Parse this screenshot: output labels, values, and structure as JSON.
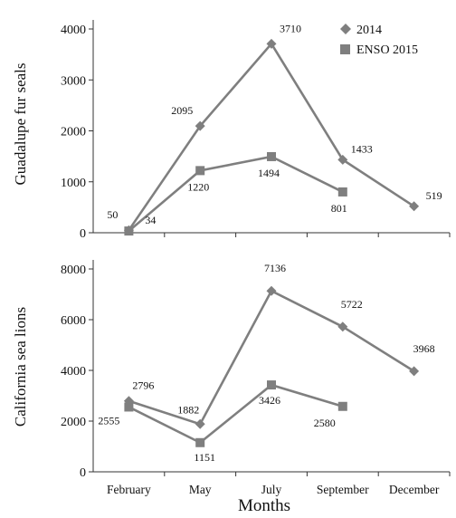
{
  "chart_data": {
    "type": "line",
    "categories": [
      "February",
      "May",
      "July",
      "September",
      "December"
    ],
    "xlabel": "Months",
    "legend": {
      "placement": "top-right",
      "entries": [
        {
          "label": "2014",
          "marker": "diamond"
        },
        {
          "label": "ENSO 2015",
          "marker": "square"
        }
      ]
    },
    "colors": {
      "line": "#7f7f7f",
      "marker": "#7f7f7f",
      "axis": "#333333"
    },
    "grid": false,
    "panels": [
      {
        "id": "top",
        "ylabel": "Guadalupe fur seals",
        "ylim": [
          0,
          4000
        ],
        "yticks": [
          0,
          1000,
          2000,
          3000,
          4000
        ],
        "series": [
          {
            "name": "2014",
            "marker": "diamond",
            "values": [
              50,
              2095,
              3710,
              1433,
              519
            ],
            "labels": [
              "50",
              "2095",
              "3710",
              "1433",
              "519"
            ]
          },
          {
            "name": "ENSO 2015",
            "marker": "square",
            "values": [
              34,
              1220,
              1494,
              801,
              null
            ],
            "labels": [
              "34",
              "1220",
              "1494",
              "801",
              null
            ]
          }
        ]
      },
      {
        "id": "bottom",
        "ylabel": "California sea lions",
        "ylim": [
          0,
          8000
        ],
        "yticks": [
          0,
          2000,
          4000,
          6000,
          8000
        ],
        "series": [
          {
            "name": "2014",
            "marker": "diamond",
            "values": [
              2796,
              1882,
              7136,
              5722,
              3968
            ],
            "labels": [
              "2796",
              "1882",
              "7136",
              "5722",
              "3968"
            ]
          },
          {
            "name": "ENSO 2015",
            "marker": "square",
            "values": [
              2555,
              1151,
              3426,
              2580,
              null
            ],
            "labels": [
              "2555",
              "1151",
              "3426",
              "2580",
              null
            ]
          }
        ]
      }
    ]
  }
}
